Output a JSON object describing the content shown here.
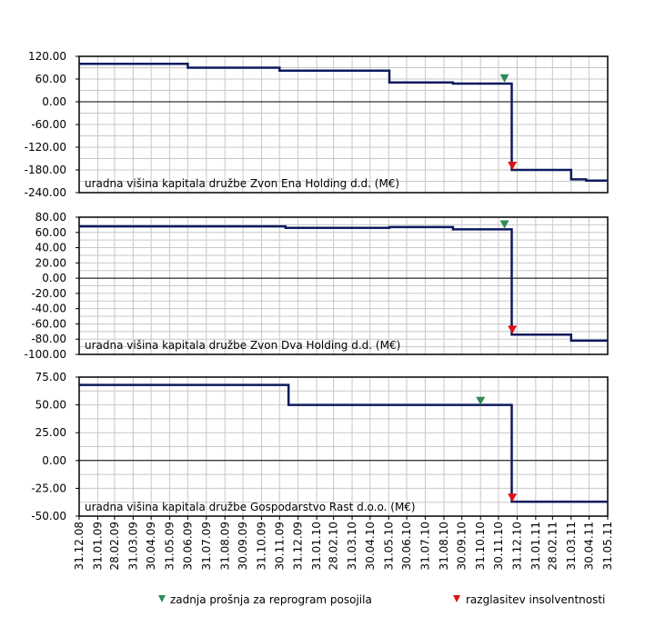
{
  "colors": {
    "line": "#0d1a5e",
    "grid": "#c8c8c8",
    "green_marker": "#2e8b57",
    "red_marker": "#dd1111"
  },
  "legend": {
    "green_label": "zadnja prošnja za reprogram posojila",
    "red_label": "razglasitev insolventnosti",
    "green_icon": "green-triangle-down-icon",
    "red_icon": "red-triangle-down-icon"
  },
  "chart_data": [
    {
      "type": "line",
      "step": "post",
      "title": "",
      "label": "uradna višina kapitala družbe Zvon Ena Holding d.d. (M€)",
      "ylim": [
        -240,
        120
      ],
      "yticks": [
        "120.00",
        "60.00",
        "0.00",
        "-60.00",
        "-120.00",
        "-180.00",
        "-240.00"
      ],
      "x": [
        "2008-12-31",
        "2009-06-30",
        "2009-11-30",
        "2010-06-01",
        "2010-09-15",
        "2010-12-22",
        "2011-03-31",
        "2011-04-25",
        "2011-05-31"
      ],
      "values": [
        100,
        90,
        82,
        51,
        48,
        -180,
        -205,
        -208,
        -208
      ],
      "markers": {
        "green": {
          "x": "2010-12-10",
          "y": 63
        },
        "red": {
          "x": "2010-12-23",
          "y": -168
        }
      },
      "grid": true,
      "xlabel": "",
      "ylabel": ""
    },
    {
      "type": "line",
      "step": "post",
      "title": "",
      "label": "uradna višina kapitala družbe Zvon Dva Holding d.d. (M€)",
      "ylim": [
        -100,
        80
      ],
      "yticks": [
        "80.00",
        "60.00",
        "40.00",
        "20.00",
        "0.00",
        "-20.00",
        "-40.00",
        "-60.00",
        "-80.00",
        "-100.00"
      ],
      "x": [
        "2008-12-31",
        "2009-12-10",
        "2010-06-01",
        "2010-09-15",
        "2010-12-22",
        "2011-03-31",
        "2011-05-31"
      ],
      "values": [
        68,
        66,
        67,
        64,
        -74,
        -82,
        -82
      ],
      "markers": {
        "green": {
          "x": "2010-12-10",
          "y": 71
        },
        "red": {
          "x": "2010-12-23",
          "y": -67
        }
      },
      "grid": true,
      "xlabel": "",
      "ylabel": ""
    },
    {
      "type": "line",
      "step": "post",
      "title": "",
      "label": "uradna višina kapitala družbe Gospodarstvo Rast d.o.o. (M€)",
      "ylim": [
        -50,
        75
      ],
      "yticks": [
        "75.00",
        "50.00",
        "25.00",
        "0.00",
        "-25.00",
        "-50.00"
      ],
      "x": [
        "2008-12-31",
        "2009-12-15",
        "2010-12-22",
        "2011-05-31"
      ],
      "values": [
        68,
        50,
        -37,
        -37
      ],
      "markers": {
        "green": {
          "x": "2010-10-31",
          "y": 54
        },
        "red": {
          "x": "2010-12-23",
          "y": -33
        }
      },
      "grid": true,
      "xlabel": "",
      "ylabel": ""
    }
  ],
  "xaxis": {
    "xlim": [
      "2008-12-31",
      "2011-05-31"
    ],
    "tick_dates": [
      "2008-12-31",
      "2009-01-31",
      "2009-02-28",
      "2009-03-31",
      "2009-04-30",
      "2009-05-31",
      "2009-06-30",
      "2009-07-31",
      "2009-08-31",
      "2009-09-30",
      "2009-10-31",
      "2009-11-30",
      "2009-12-31",
      "2010-01-31",
      "2010-02-28",
      "2010-03-31",
      "2010-04-30",
      "2010-05-31",
      "2010-06-30",
      "2010-07-31",
      "2010-08-31",
      "2010-09-30",
      "2010-10-31",
      "2010-11-30",
      "2010-12-31",
      "2011-01-31",
      "2011-02-28",
      "2011-03-31",
      "2011-04-30",
      "2011-05-31"
    ],
    "tick_labels": [
      "31.12.08",
      "31.01.09",
      "28.02.09",
      "31.03.09",
      "30.04.09",
      "31.05.09",
      "30.06.09",
      "31.07.09",
      "31.08.09",
      "30.09.09",
      "31.10.09",
      "30.11.09",
      "31.12.09",
      "31.01.10",
      "28.02.10",
      "31.03.10",
      "30.04.10",
      "31.05.10",
      "30.06.10",
      "31.07.10",
      "31.08.10",
      "30.09.10",
      "31.10.10",
      "30.11.10",
      "31.12.10",
      "31.01.11",
      "28.02.11",
      "31.03.11",
      "30.04.11",
      "31.05.11"
    ]
  }
}
